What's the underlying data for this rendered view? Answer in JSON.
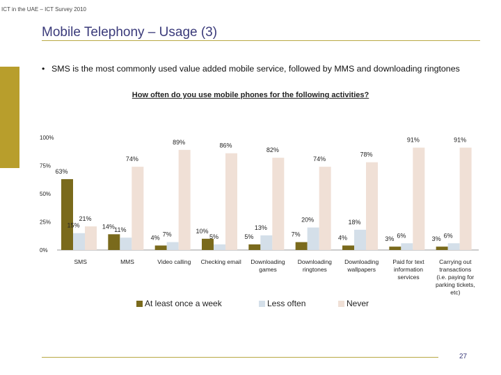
{
  "header": {
    "note": "ICT in the UAE – ICT Survey 2010"
  },
  "slide": {
    "title": "Mobile Telephony – Usage (3)",
    "bullet": "SMS is the most commonly used value added mobile service, followed by MMS and downloading ringtones",
    "page_number": "27"
  },
  "colors": {
    "series1": "#7a6a1c",
    "series2": "#d4dfe9",
    "series3": "#f0e0d6",
    "accent": "#b89e2c",
    "title": "#3a3a7a"
  },
  "chart_data": {
    "type": "bar",
    "title": "How often do you use mobile phones for the following activities?",
    "categories": [
      "SMS",
      "MMS",
      "Video calling",
      "Checking email",
      "Downloading games",
      "Downloading ringtones",
      "Downloading wallpapers",
      "Paid for text information services",
      "Carrying out transactions (i.e. paying for parking tickets, etc)"
    ],
    "category_lines": [
      [
        "SMS"
      ],
      [
        "MMS"
      ],
      [
        "Video calling"
      ],
      [
        "Checking email"
      ],
      [
        "Downloading",
        "games"
      ],
      [
        "Downloading",
        "ringtones"
      ],
      [
        "Downloading",
        "wallpapers"
      ],
      [
        "Paid for text",
        "information",
        "services"
      ],
      [
        "Carrying out",
        "transactions",
        "(i.e. paying for",
        "parking tickets,",
        "etc)"
      ]
    ],
    "series": [
      {
        "name": "At least once a week",
        "values": [
          63,
          14,
          4,
          10,
          5,
          7,
          4,
          3,
          3
        ]
      },
      {
        "name": "Less often",
        "values": [
          15,
          11,
          7,
          5,
          13,
          20,
          18,
          6,
          6
        ]
      },
      {
        "name": "Never",
        "values": [
          21,
          74,
          89,
          86,
          82,
          74,
          78,
          91,
          91
        ]
      }
    ],
    "value_suffix": "%",
    "y_ticks": [
      0,
      25,
      50,
      75,
      100
    ],
    "y_tick_labels": [
      "0%",
      "25%",
      "50%",
      "75%",
      "100%"
    ],
    "ylim": [
      0,
      100
    ],
    "legend_position": "bottom"
  }
}
